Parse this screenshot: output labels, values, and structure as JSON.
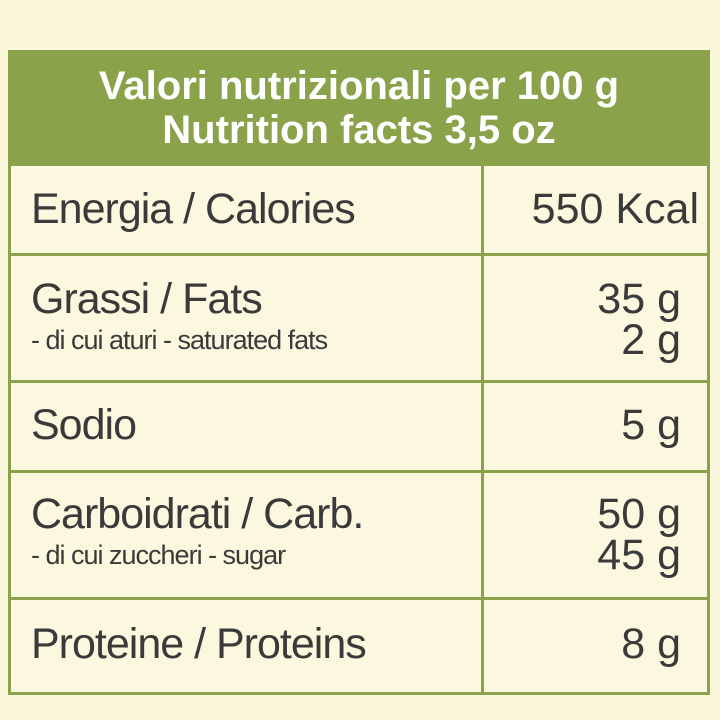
{
  "header": {
    "line1": "Valori nutrizionali per 100 g",
    "line2": "Nutrition facts 3,5 oz"
  },
  "rows": [
    {
      "name": "Energia / Calories",
      "value": "550 Kcal"
    },
    {
      "name": "Grassi / Fats",
      "value": "35 g",
      "sub_name": "- di cui aturi - saturated fats",
      "sub_value": "2 g"
    },
    {
      "name": "Sodio",
      "value": "5 g"
    },
    {
      "name": "Carboidrati / Carb.",
      "value": "50 g",
      "sub_name": "- di cui zuccheri - sugar",
      "sub_value": "45 g"
    },
    {
      "name": "Proteine / Proteins",
      "value": "8 g"
    }
  ],
  "colors": {
    "accent": "#8aa24a",
    "background": "#fbf7dc",
    "text": "#3a3a3a"
  }
}
